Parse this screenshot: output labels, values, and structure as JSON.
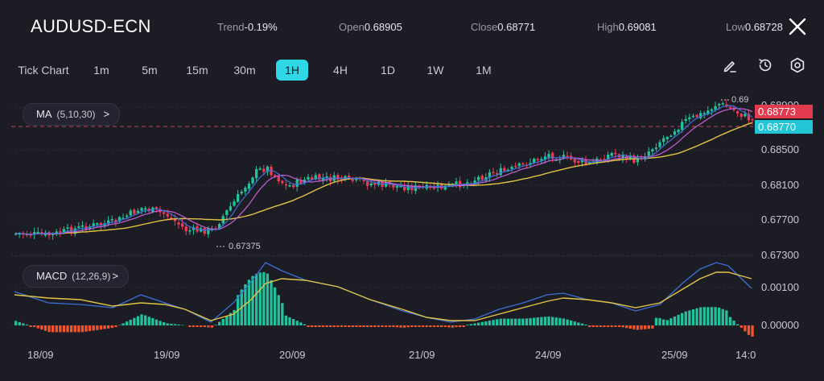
{
  "header": {
    "symbol": "AUDUSD-ECN",
    "trend_label": "Trend",
    "trend_value": "-0.19%",
    "open_label": "Open",
    "open_value": "0.68905",
    "close_label": "Close",
    "close_value": "0.68771",
    "high_label": "High",
    "high_value": "0.69081",
    "low_label": "Low",
    "low_value": "0.68728"
  },
  "timeframes": [
    "Tick Chart",
    "1m",
    "5m",
    "15m",
    "30m",
    "1H",
    "4H",
    "1D",
    "1W",
    "1M"
  ],
  "active_timeframe": "1H",
  "tools": [
    "draw-icon",
    "clock-icon",
    "settings-icon"
  ],
  "indicators": {
    "ma": {
      "name": "MA",
      "params": "(5,10,30)",
      "chevron": ">"
    },
    "macd": {
      "name": "MACD",
      "params": "(12,26,9)",
      "chevron": ">"
    }
  },
  "price_axis": [
    "0.68900",
    "0.68500",
    "0.68100",
    "0.67700",
    "0.67300"
  ],
  "macd_axis": [
    "0.00100",
    "0.00000"
  ],
  "price_tags": {
    "red": "0.68773",
    "cyan": "0.68770"
  },
  "annotations": {
    "high": "0.69",
    "low": "0.67375"
  },
  "time_axis": [
    "18/09",
    "19/09",
    "20/09",
    "21/09",
    "24/09",
    "25/09",
    "14:0"
  ],
  "colors": {
    "background": "#1c1c24",
    "bull": "#22c39c",
    "bear": "#f23a52",
    "ma5": "#3c6fd8",
    "ma10": "#c55fd8",
    "ma30": "#e2c444",
    "macd_line": "#3c6fd8",
    "signal_line": "#e2c444",
    "hist_pos": "#22c39c",
    "hist_neg": "#f2552e",
    "accent": "#2fd8e6"
  }
}
